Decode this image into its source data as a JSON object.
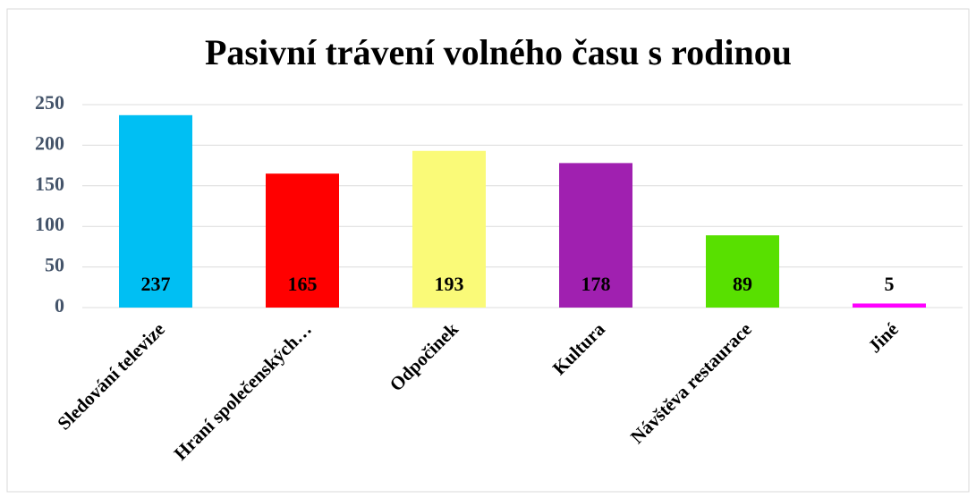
{
  "chart_data": {
    "type": "bar",
    "title": "Pasivní trávení volného času s rodinou",
    "categories": [
      "Sledování televize",
      "Hraní společenských…",
      "Odpočinek",
      "Kultura",
      "Návštěva restaurace",
      "Jiné"
    ],
    "values": [
      237,
      165,
      193,
      178,
      89,
      5
    ],
    "colors": [
      "#00bff3",
      "#ff0000",
      "#fafa78",
      "#a020b0",
      "#58e000",
      "#ff00ff"
    ],
    "ylim": [
      0,
      250
    ],
    "yticks": [
      0,
      50,
      100,
      150,
      200,
      250
    ],
    "grid": true
  }
}
